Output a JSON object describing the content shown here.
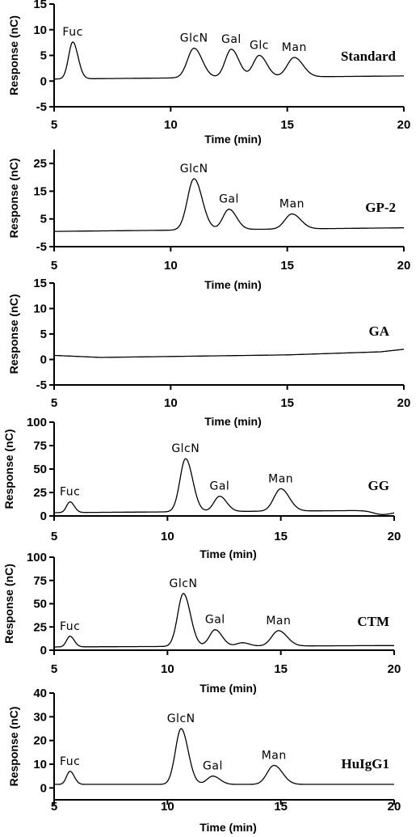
{
  "chart_data": [
    {
      "type": "line",
      "sample": "Standard",
      "xlabel": "Time (min)",
      "ylabel": "Response (nC)",
      "xlim": [
        5,
        20
      ],
      "ylim": [
        -5,
        15
      ],
      "xticks": [
        5,
        10,
        15,
        20
      ],
      "yticks": [
        -5,
        0,
        5,
        10,
        15
      ],
      "baseline": [
        [
          5.0,
          0.4
        ],
        [
          20.0,
          1.0
        ]
      ],
      "peaks": [
        {
          "label": "Fuc",
          "x": 5.8,
          "y": 7.6,
          "width": 0.18
        },
        {
          "label": "GlcN",
          "x": 11.0,
          "y": 6.4,
          "width": 0.28
        },
        {
          "label": "Gal",
          "x": 12.6,
          "y": 6.2,
          "width": 0.26
        },
        {
          "label": "Glc",
          "x": 13.8,
          "y": 5.0,
          "width": 0.26
        },
        {
          "label": "Man",
          "x": 15.3,
          "y": 4.6,
          "width": 0.3
        }
      ],
      "unlabeled_peaks": []
    },
    {
      "type": "line",
      "sample": "GP-2",
      "xlabel": "Time (min)",
      "ylabel": "Response (nC)",
      "xlim": [
        5,
        20
      ],
      "ylim": [
        -5,
        30
      ],
      "xticks": [
        5,
        10,
        15,
        20
      ],
      "yticks": [
        -5,
        5,
        15,
        25
      ],
      "baseline": [
        [
          5.0,
          0.5
        ],
        [
          20.0,
          1.8
        ]
      ],
      "peaks": [
        {
          "label": "GlcN",
          "x": 11.0,
          "y": 19.5,
          "width": 0.28
        },
        {
          "label": "Gal",
          "x": 12.5,
          "y": 8.5,
          "width": 0.26
        },
        {
          "label": "Man",
          "x": 15.2,
          "y": 6.8,
          "width": 0.3
        }
      ],
      "unlabeled_peaks": []
    },
    {
      "type": "line",
      "sample": "GA",
      "xlabel": "Time (min)",
      "ylabel": "Response (nC)",
      "xlim": [
        5,
        20
      ],
      "ylim": [
        -5,
        15
      ],
      "xticks": [
        5,
        10,
        15,
        20
      ],
      "yticks": [
        -5,
        0,
        5,
        10,
        15
      ],
      "baseline": [
        [
          5.0,
          0.8
        ],
        [
          7.0,
          0.4
        ],
        [
          15.0,
          0.9
        ],
        [
          19.0,
          1.5
        ],
        [
          20.0,
          2.0
        ]
      ],
      "peaks": [],
      "unlabeled_peaks": []
    },
    {
      "type": "line",
      "sample": "GG",
      "xlabel": "Time (min)",
      "ylabel": "Response (nC)",
      "xlim": [
        5,
        20
      ],
      "ylim": [
        0,
        100
      ],
      "xticks": [
        5,
        10,
        15,
        20
      ],
      "yticks": [
        0,
        25,
        50,
        75,
        100
      ],
      "baseline": [
        [
          5.0,
          3.5
        ],
        [
          20.0,
          6.0
        ]
      ],
      "peaks": [
        {
          "label": "Fuc",
          "x": 5.7,
          "y": 15,
          "width": 0.15
        },
        {
          "label": "GlcN",
          "x": 10.8,
          "y": 61,
          "width": 0.25
        },
        {
          "label": "Gal",
          "x": 12.3,
          "y": 21,
          "width": 0.25
        },
        {
          "label": "Man",
          "x": 15.0,
          "y": 29,
          "width": 0.3
        }
      ],
      "unlabeled_peaks": [
        {
          "x": 19.5,
          "y": 1.5,
          "width": 0.4
        }
      ]
    },
    {
      "type": "line",
      "sample": "CTM",
      "xlabel": "Time (min)",
      "ylabel": "Response (nC)",
      "xlim": [
        5,
        20
      ],
      "ylim": [
        0,
        100
      ],
      "xticks": [
        5,
        10,
        15,
        20
      ],
      "yticks": [
        0,
        25,
        50,
        75,
        100
      ],
      "baseline": [
        [
          5.0,
          3.5
        ],
        [
          20.0,
          5.0
        ]
      ],
      "peaks": [
        {
          "label": "Fuc",
          "x": 5.7,
          "y": 15,
          "width": 0.15
        },
        {
          "label": "GlcN",
          "x": 10.7,
          "y": 61,
          "width": 0.25
        },
        {
          "label": "Gal",
          "x": 12.1,
          "y": 22,
          "width": 0.25
        },
        {
          "label": "Man",
          "x": 14.9,
          "y": 21,
          "width": 0.3
        }
      ],
      "unlabeled_peaks": [
        {
          "x": 13.3,
          "y": 8,
          "width": 0.25
        }
      ]
    },
    {
      "type": "line",
      "sample": "HuIgG1",
      "xlabel": "Time (min)",
      "ylabel": "Response (nC)",
      "xlim": [
        5,
        20
      ],
      "ylim": [
        -5,
        40
      ],
      "xticks": [
        5,
        10,
        15,
        20
      ],
      "yticks": [
        0,
        10,
        20,
        30,
        40
      ],
      "baseline": [
        [
          5.0,
          1.5
        ],
        [
          20.0,
          1.5
        ]
      ],
      "peaks": [
        {
          "label": "Fuc",
          "x": 5.7,
          "y": 7,
          "width": 0.15
        },
        {
          "label": "GlcN",
          "x": 10.6,
          "y": 25,
          "width": 0.25
        },
        {
          "label": "Gal",
          "x": 12.0,
          "y": 5,
          "width": 0.25
        },
        {
          "label": "Man",
          "x": 14.7,
          "y": 9.5,
          "width": 0.3
        }
      ],
      "unlabeled_peaks": []
    }
  ]
}
